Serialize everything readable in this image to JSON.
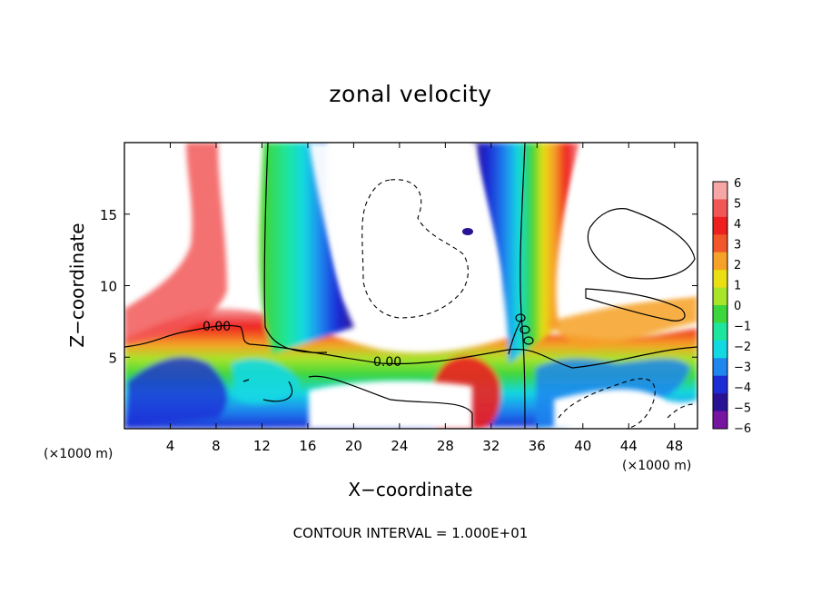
{
  "chart_data": {
    "type": "heatmap",
    "title": "zonal velocity",
    "xlabel": "X−coordinate",
    "ylabel": "Z−coordinate",
    "x_unit_label": "(×1000 m)",
    "z_unit_label": "(×1000 m)",
    "footer": "CONTOUR INTERVAL = 1.000E+01",
    "xlim": [
      0,
      50
    ],
    "ylim": [
      0,
      20
    ],
    "x_ticks": [
      "4",
      "8",
      "12",
      "16",
      "20",
      "24",
      "28",
      "32",
      "36",
      "40",
      "44",
      "48"
    ],
    "y_ticks": [
      "5",
      "10",
      "15"
    ],
    "colorbar": {
      "labels": [
        "6",
        "5",
        "4",
        "3",
        "2",
        "1",
        "0",
        "−1",
        "−2",
        "−3",
        "−4",
        "−5",
        "−6"
      ],
      "range": [
        -6,
        6
      ],
      "colors": [
        "#f7a6a6",
        "#f25757",
        "#ee1f1f",
        "#f1572a",
        "#f6a127",
        "#e9df12",
        "#a8e42a",
        "#3dd63d",
        "#1ee59e",
        "#12d8e2",
        "#1f86ee",
        "#1c2dd6",
        "#2a1295",
        "#76159f"
      ]
    },
    "contour_labels": [
      "0.00",
      "0.00"
    ]
  }
}
